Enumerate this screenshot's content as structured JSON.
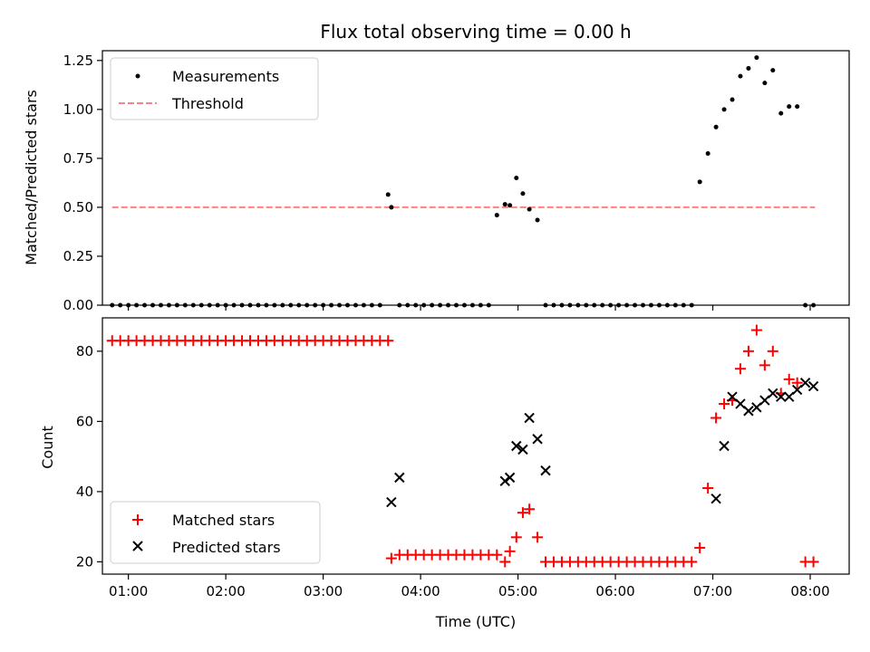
{
  "title": "Flux total observing time = 0.00 h",
  "chart_data": [
    {
      "type": "scatter",
      "ylabel": "Matched/Predicted stars",
      "ylim": [
        0,
        1.3
      ],
      "xlim": [
        "00:44",
        "08:24"
      ],
      "yticks": [
        "0.00",
        "0.25",
        "0.50",
        "0.75",
        "1.00",
        "1.25"
      ],
      "ytick_values": [
        0,
        0.25,
        0.5,
        0.75,
        1.0,
        1.25
      ],
      "legend_position": "upper-left",
      "threshold": {
        "name": "Threshold",
        "y": 0.5,
        "x_start": "00:50",
        "x_end": "08:03",
        "color": "#ff8080"
      },
      "series": [
        {
          "name": "Measurements",
          "color": "#000000",
          "marker": "dot",
          "x": [
            "00:50",
            "00:55",
            "01:00",
            "01:05",
            "01:10",
            "01:15",
            "01:20",
            "01:25",
            "01:30",
            "01:35",
            "01:40",
            "01:45",
            "01:50",
            "01:55",
            "02:00",
            "02:05",
            "02:10",
            "02:15",
            "02:20",
            "02:25",
            "02:30",
            "02:35",
            "02:40",
            "02:45",
            "02:50",
            "02:55",
            "03:00",
            "03:05",
            "03:10",
            "03:15",
            "03:20",
            "03:25",
            "03:30",
            "03:35",
            "03:40",
            "03:42",
            "03:47",
            "03:52",
            "03:57",
            "04:02",
            "04:07",
            "04:12",
            "04:17",
            "04:22",
            "04:27",
            "04:32",
            "04:37",
            "04:42",
            "04:47",
            "04:52",
            "04:55",
            "04:59",
            "05:03",
            "05:07",
            "05:12",
            "05:17",
            "05:22",
            "05:27",
            "05:32",
            "05:37",
            "05:42",
            "05:47",
            "05:52",
            "05:57",
            "06:02",
            "06:07",
            "06:12",
            "06:17",
            "06:22",
            "06:27",
            "06:32",
            "06:37",
            "06:42",
            "06:47",
            "06:52",
            "06:57",
            "07:02",
            "07:07",
            "07:12",
            "07:17",
            "07:22",
            "07:27",
            "07:32",
            "07:37",
            "07:42",
            "07:47",
            "07:52",
            "07:57",
            "08:02"
          ],
          "y": [
            0,
            0,
            0,
            0,
            0,
            0,
            0,
            0,
            0,
            0,
            0,
            0,
            0,
            0,
            0,
            0,
            0,
            0,
            0,
            0,
            0,
            0,
            0,
            0,
            0,
            0,
            0,
            0,
            0,
            0,
            0,
            0,
            0,
            0,
            0.565,
            0.5,
            0,
            0,
            0,
            0,
            0,
            0,
            0,
            0,
            0,
            0,
            0,
            0,
            0.46,
            0.515,
            0.51,
            0.65,
            0.57,
            0.49,
            0.435,
            0,
            0,
            0,
            0,
            0,
            0,
            0,
            0,
            0,
            0,
            0,
            0,
            0,
            0,
            0,
            0,
            0,
            0,
            0,
            0.63,
            0.775,
            0.91,
            1.0,
            1.05,
            1.17,
            1.21,
            1.265,
            1.135,
            1.2,
            0.98,
            1.015,
            1.015,
            0,
            0
          ]
        }
      ],
      "legend": [
        "Measurements",
        "Threshold"
      ]
    },
    {
      "type": "scatter",
      "xlabel": "Time (UTC)",
      "ylabel": "Count",
      "ylim": [
        16.5,
        89.5
      ],
      "xlim": [
        "00:44",
        "08:24"
      ],
      "xticks": [
        "01:00",
        "02:00",
        "03:00",
        "04:00",
        "05:00",
        "06:00",
        "07:00",
        "08:00"
      ],
      "yticks": [
        "20",
        "40",
        "60",
        "80"
      ],
      "ytick_values": [
        20,
        40,
        60,
        80
      ],
      "legend_position": "lower-left",
      "series": [
        {
          "name": "Matched stars",
          "color": "#ff0000",
          "marker": "plus",
          "x": [
            "00:50",
            "00:55",
            "01:00",
            "01:05",
            "01:10",
            "01:15",
            "01:20",
            "01:25",
            "01:30",
            "01:35",
            "01:40",
            "01:45",
            "01:50",
            "01:55",
            "02:00",
            "02:05",
            "02:10",
            "02:15",
            "02:20",
            "02:25",
            "02:30",
            "02:35",
            "02:40",
            "02:45",
            "02:50",
            "02:55",
            "03:00",
            "03:05",
            "03:10",
            "03:15",
            "03:20",
            "03:25",
            "03:30",
            "03:35",
            "03:40",
            "03:42",
            "03:47",
            "03:52",
            "03:57",
            "04:02",
            "04:07",
            "04:12",
            "04:17",
            "04:22",
            "04:27",
            "04:32",
            "04:37",
            "04:42",
            "04:47",
            "04:52",
            "04:55",
            "04:59",
            "05:03",
            "05:07",
            "05:12",
            "05:17",
            "05:22",
            "05:27",
            "05:32",
            "05:37",
            "05:42",
            "05:47",
            "05:52",
            "05:57",
            "06:02",
            "06:07",
            "06:12",
            "06:17",
            "06:22",
            "06:27",
            "06:32",
            "06:37",
            "06:42",
            "06:47",
            "06:52",
            "06:57",
            "07:02",
            "07:07",
            "07:12",
            "07:17",
            "07:22",
            "07:27",
            "07:32",
            "07:37",
            "07:42",
            "07:47",
            "07:52",
            "07:57",
            "08:02"
          ],
          "y": [
            83,
            83,
            83,
            83,
            83,
            83,
            83,
            83,
            83,
            83,
            83,
            83,
            83,
            83,
            83,
            83,
            83,
            83,
            83,
            83,
            83,
            83,
            83,
            83,
            83,
            83,
            83,
            83,
            83,
            83,
            83,
            83,
            83,
            83,
            83,
            21,
            22,
            22,
            22,
            22,
            22,
            22,
            22,
            22,
            22,
            22,
            22,
            22,
            22,
            20,
            23,
            27,
            34,
            35,
            27,
            20,
            20,
            20,
            20,
            20,
            20,
            20,
            20,
            20,
            20,
            20,
            20,
            20,
            20,
            20,
            20,
            20,
            20,
            20,
            24,
            41,
            61,
            65,
            66,
            75,
            80,
            86,
            76,
            80,
            68,
            72,
            71,
            20,
            20
          ]
        },
        {
          "name": "Predicted stars",
          "color": "#000000",
          "marker": "x",
          "x": [
            "03:42",
            "03:47",
            "04:52",
            "04:55",
            "04:59",
            "05:03",
            "05:07",
            "05:12",
            "05:17",
            "07:02",
            "07:07",
            "07:12",
            "07:17",
            "07:22",
            "07:27",
            "07:32",
            "07:37",
            "07:42",
            "07:47",
            "07:52",
            "07:57",
            "08:02"
          ],
          "y": [
            37,
            44,
            43,
            44,
            53,
            52,
            61,
            55,
            46,
            38,
            53,
            67,
            65,
            63,
            64,
            66,
            68,
            67,
            67,
            69,
            71,
            70
          ]
        }
      ],
      "legend": [
        "Matched stars",
        "Predicted stars"
      ]
    }
  ]
}
